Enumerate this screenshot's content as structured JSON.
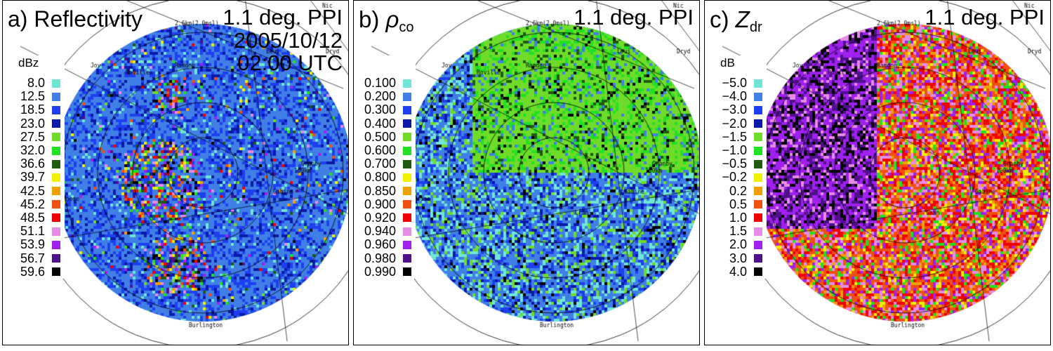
{
  "panels": [
    {
      "id": "a",
      "label_prefix": "a)",
      "label_text": "Reflectivity",
      "title_lines": [
        "1.1 deg. PPI",
        "2005/10/12",
        "02:00 UTC"
      ],
      "unit": "dBz",
      "values": [
        "8.0",
        "12.5",
        "18.5",
        "23.0",
        "27.5",
        "32.0",
        "36.6",
        "39.7",
        "42.5",
        "45.2",
        "48.5",
        "51.1",
        "53.9",
        "56.7",
        "59.6"
      ],
      "base": "#3f7fe6",
      "noise_color": "#6fe6d6"
    },
    {
      "id": "b",
      "label_prefix": "b)",
      "label_symbol": "ρ",
      "label_sub": "co",
      "title_lines": [
        "1.1 deg. PPI"
      ],
      "unit": "",
      "values": [
        "0.100",
        "0.200",
        "0.300",
        "0.400",
        "0.500",
        "0.600",
        "0.700",
        "0.800",
        "0.850",
        "0.900",
        "0.920",
        "0.940",
        "0.960",
        "0.980",
        "0.990"
      ],
      "base": "#4a8ff0",
      "noise_color": "#7ce6e0"
    },
    {
      "id": "c",
      "label_prefix": "c)",
      "label_symbol": "Z",
      "label_sub": "dr",
      "title_lines": [
        "1.1 deg. PPI"
      ],
      "unit": "dB",
      "values": [
        "−5.0",
        "−4.0",
        "−3.0",
        "−2.0",
        "−1.5",
        "−1.0",
        "−0.5",
        "−0.2",
        "0.2",
        "0.5",
        "1.0",
        "1.5",
        "2.0",
        "3.0",
        "4.0"
      ],
      "base": "#e23a9a",
      "noise_color": "#e6e63a"
    }
  ],
  "palette": [
    "#6fe6d6",
    "#3f7fe6",
    "#1e3ff0",
    "#0a1aa8",
    "#6fdc2a",
    "#22e022",
    "#1e5a10",
    "#f0f000",
    "#f0a000",
    "#f05010",
    "#f00000",
    "#e68ce6",
    "#a020f0",
    "#50108c",
    "#000000"
  ],
  "map_labels": [
    "Jov",
    "Roville",
    "Ramdon",
    "2.6km(2.0msl)",
    "Loui",
    "Nic",
    "Dryd",
    "Alfred",
    "Moose",
    "Granby",
    "Gabine",
    "Cran",
    "Burlington",
    "100km"
  ]
}
